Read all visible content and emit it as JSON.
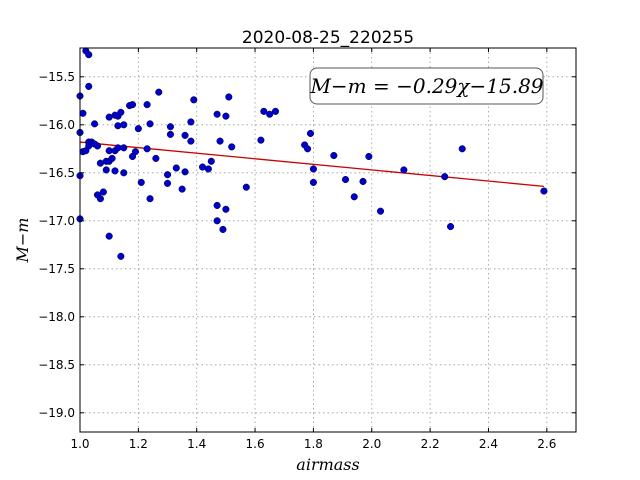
{
  "chart_data": {
    "type": "scatter",
    "title": "2020-08-25_220255",
    "xlabel": "airmass",
    "ylabel": "M−m",
    "xlim": [
      1.0,
      2.7
    ],
    "ylim": [
      -19.2,
      -15.2
    ],
    "y_inverted": true,
    "grid": true,
    "x_ticks": [
      1.0,
      1.2,
      1.4,
      1.6,
      1.8,
      2.0,
      2.2,
      2.4,
      2.6
    ],
    "x_tick_labels": [
      "1.0",
      "1.2",
      "1.4",
      "1.6",
      "1.8",
      "2.0",
      "2.2",
      "2.4",
      "2.6"
    ],
    "y_ticks": [
      -15.5,
      -16.0,
      -16.5,
      -17.0,
      -17.5,
      -18.0,
      -18.5,
      -19.0
    ],
    "y_tick_labels": [
      "−15.5",
      "−16.0",
      "−16.5",
      "−17.0",
      "−17.5",
      "−18.0",
      "−18.5",
      "−19.0"
    ],
    "annotation": "M−m = −0.29χ−15.89",
    "fit": {
      "slope": -0.29,
      "intercept": -15.89,
      "x_range": [
        1.0,
        2.59
      ],
      "color": "#cc0000"
    },
    "point_color": "#0000cc",
    "points": [
      [
        1.0,
        -15.7
      ],
      [
        1.0,
        -16.08
      ],
      [
        1.0,
        -16.53
      ],
      [
        1.0,
        -16.98
      ],
      [
        1.01,
        -16.28
      ],
      [
        1.01,
        -15.88
      ],
      [
        1.02,
        -15.23
      ],
      [
        1.02,
        -16.27
      ],
      [
        1.03,
        -15.27
      ],
      [
        1.03,
        -15.6
      ],
      [
        1.03,
        -16.18
      ],
      [
        1.03,
        -16.22
      ],
      [
        1.04,
        -16.18
      ],
      [
        1.05,
        -16.2
      ],
      [
        1.05,
        -15.99
      ],
      [
        1.06,
        -16.73
      ],
      [
        1.06,
        -16.22
      ],
      [
        1.07,
        -16.4
      ],
      [
        1.07,
        -16.77
      ],
      [
        1.08,
        -16.7
      ],
      [
        1.09,
        -16.47
      ],
      [
        1.09,
        -16.38
      ],
      [
        1.1,
        -15.92
      ],
      [
        1.1,
        -16.38
      ],
      [
        1.1,
        -16.27
      ],
      [
        1.1,
        -17.16
      ],
      [
        1.11,
        -16.35
      ],
      [
        1.12,
        -16.27
      ],
      [
        1.12,
        -15.9
      ],
      [
        1.12,
        -16.48
      ],
      [
        1.13,
        -16.01
      ],
      [
        1.13,
        -15.91
      ],
      [
        1.13,
        -16.24
      ],
      [
        1.14,
        -15.87
      ],
      [
        1.14,
        -17.37
      ],
      [
        1.15,
        -16.0
      ],
      [
        1.15,
        -16.24
      ],
      [
        1.15,
        -16.5
      ],
      [
        1.17,
        -15.8
      ],
      [
        1.18,
        -15.79
      ],
      [
        1.18,
        -16.33
      ],
      [
        1.19,
        -16.28
      ],
      [
        1.2,
        -16.04
      ],
      [
        1.21,
        -16.6
      ],
      [
        1.23,
        -15.79
      ],
      [
        1.23,
        -16.25
      ],
      [
        1.24,
        -16.77
      ],
      [
        1.24,
        -15.99
      ],
      [
        1.26,
        -16.35
      ],
      [
        1.27,
        -15.66
      ],
      [
        1.3,
        -16.52
      ],
      [
        1.3,
        -16.61
      ],
      [
        1.31,
        -16.02
      ],
      [
        1.31,
        -16.1
      ],
      [
        1.33,
        -16.45
      ],
      [
        1.35,
        -16.67
      ],
      [
        1.36,
        -16.11
      ],
      [
        1.36,
        -16.49
      ],
      [
        1.38,
        -15.97
      ],
      [
        1.38,
        -16.17
      ],
      [
        1.39,
        -15.74
      ],
      [
        1.42,
        -16.44
      ],
      [
        1.44,
        -16.46
      ],
      [
        1.45,
        -16.38
      ],
      [
        1.47,
        -15.89
      ],
      [
        1.47,
        -16.84
      ],
      [
        1.47,
        -17.0
      ],
      [
        1.48,
        -16.17
      ],
      [
        1.49,
        -17.09
      ],
      [
        1.5,
        -16.88
      ],
      [
        1.5,
        -15.91
      ],
      [
        1.51,
        -15.71
      ],
      [
        1.52,
        -16.23
      ],
      [
        1.57,
        -16.65
      ],
      [
        1.62,
        -16.16
      ],
      [
        1.63,
        -15.86
      ],
      [
        1.65,
        -15.89
      ],
      [
        1.67,
        -15.86
      ],
      [
        1.77,
        -16.21
      ],
      [
        1.78,
        -16.25
      ],
      [
        1.79,
        -16.09
      ],
      [
        1.8,
        -16.6
      ],
      [
        1.8,
        -16.46
      ],
      [
        1.87,
        -16.32
      ],
      [
        1.91,
        -16.57
      ],
      [
        1.94,
        -16.75
      ],
      [
        1.97,
        -16.59
      ],
      [
        1.99,
        -16.33
      ],
      [
        2.03,
        -16.9
      ],
      [
        2.11,
        -16.47
      ],
      [
        2.25,
        -16.54
      ],
      [
        2.27,
        -17.06
      ],
      [
        2.31,
        -16.25
      ],
      [
        2.59,
        -16.69
      ]
    ]
  }
}
